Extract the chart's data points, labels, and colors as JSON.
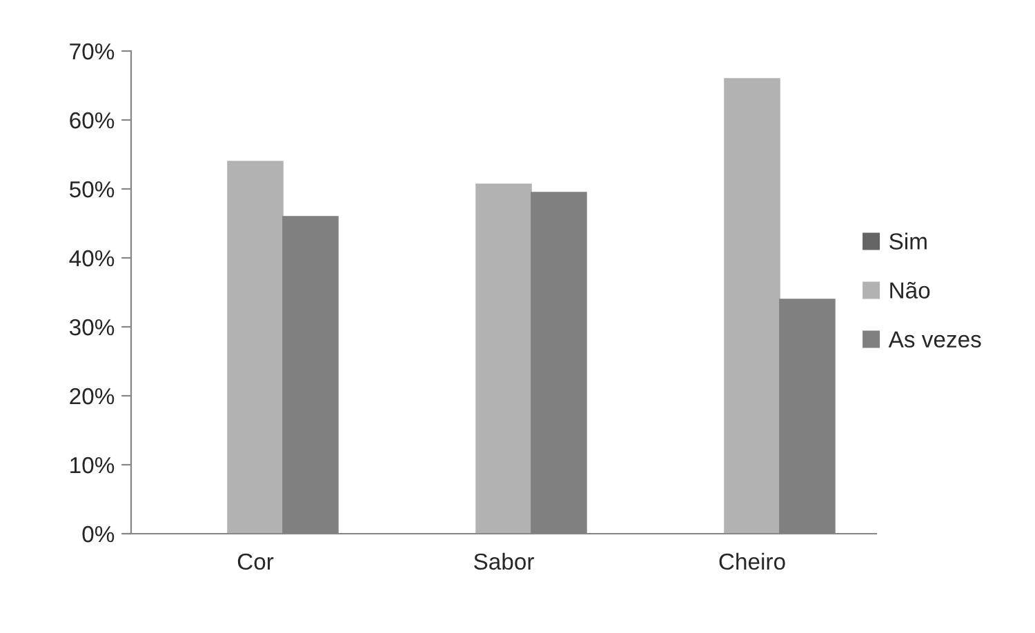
{
  "chart_data": {
    "type": "bar",
    "categories": [
      "Cor",
      "Sabor",
      "Cheiro"
    ],
    "series": [
      {
        "name": "Sim",
        "color": "#646464",
        "values": [
          0,
          0,
          0
        ]
      },
      {
        "name": "Não",
        "color": "#b2b2b2",
        "values": [
          54,
          50.7,
          66
        ]
      },
      {
        "name": "As vezes",
        "color": "#808080",
        "values": [
          46,
          49.5,
          34
        ]
      }
    ],
    "ylim": [
      0,
      70
    ],
    "yticks": [
      {
        "value": 0,
        "label": "0%"
      },
      {
        "value": 10,
        "label": "10%"
      },
      {
        "value": 20,
        "label": "20%"
      },
      {
        "value": 30,
        "label": "30%"
      },
      {
        "value": 40,
        "label": "40%"
      },
      {
        "value": 50,
        "label": "50%"
      },
      {
        "value": 60,
        "label": "60%"
      },
      {
        "value": 70,
        "label": "70%"
      }
    ],
    "grid": false,
    "legend": "right"
  }
}
